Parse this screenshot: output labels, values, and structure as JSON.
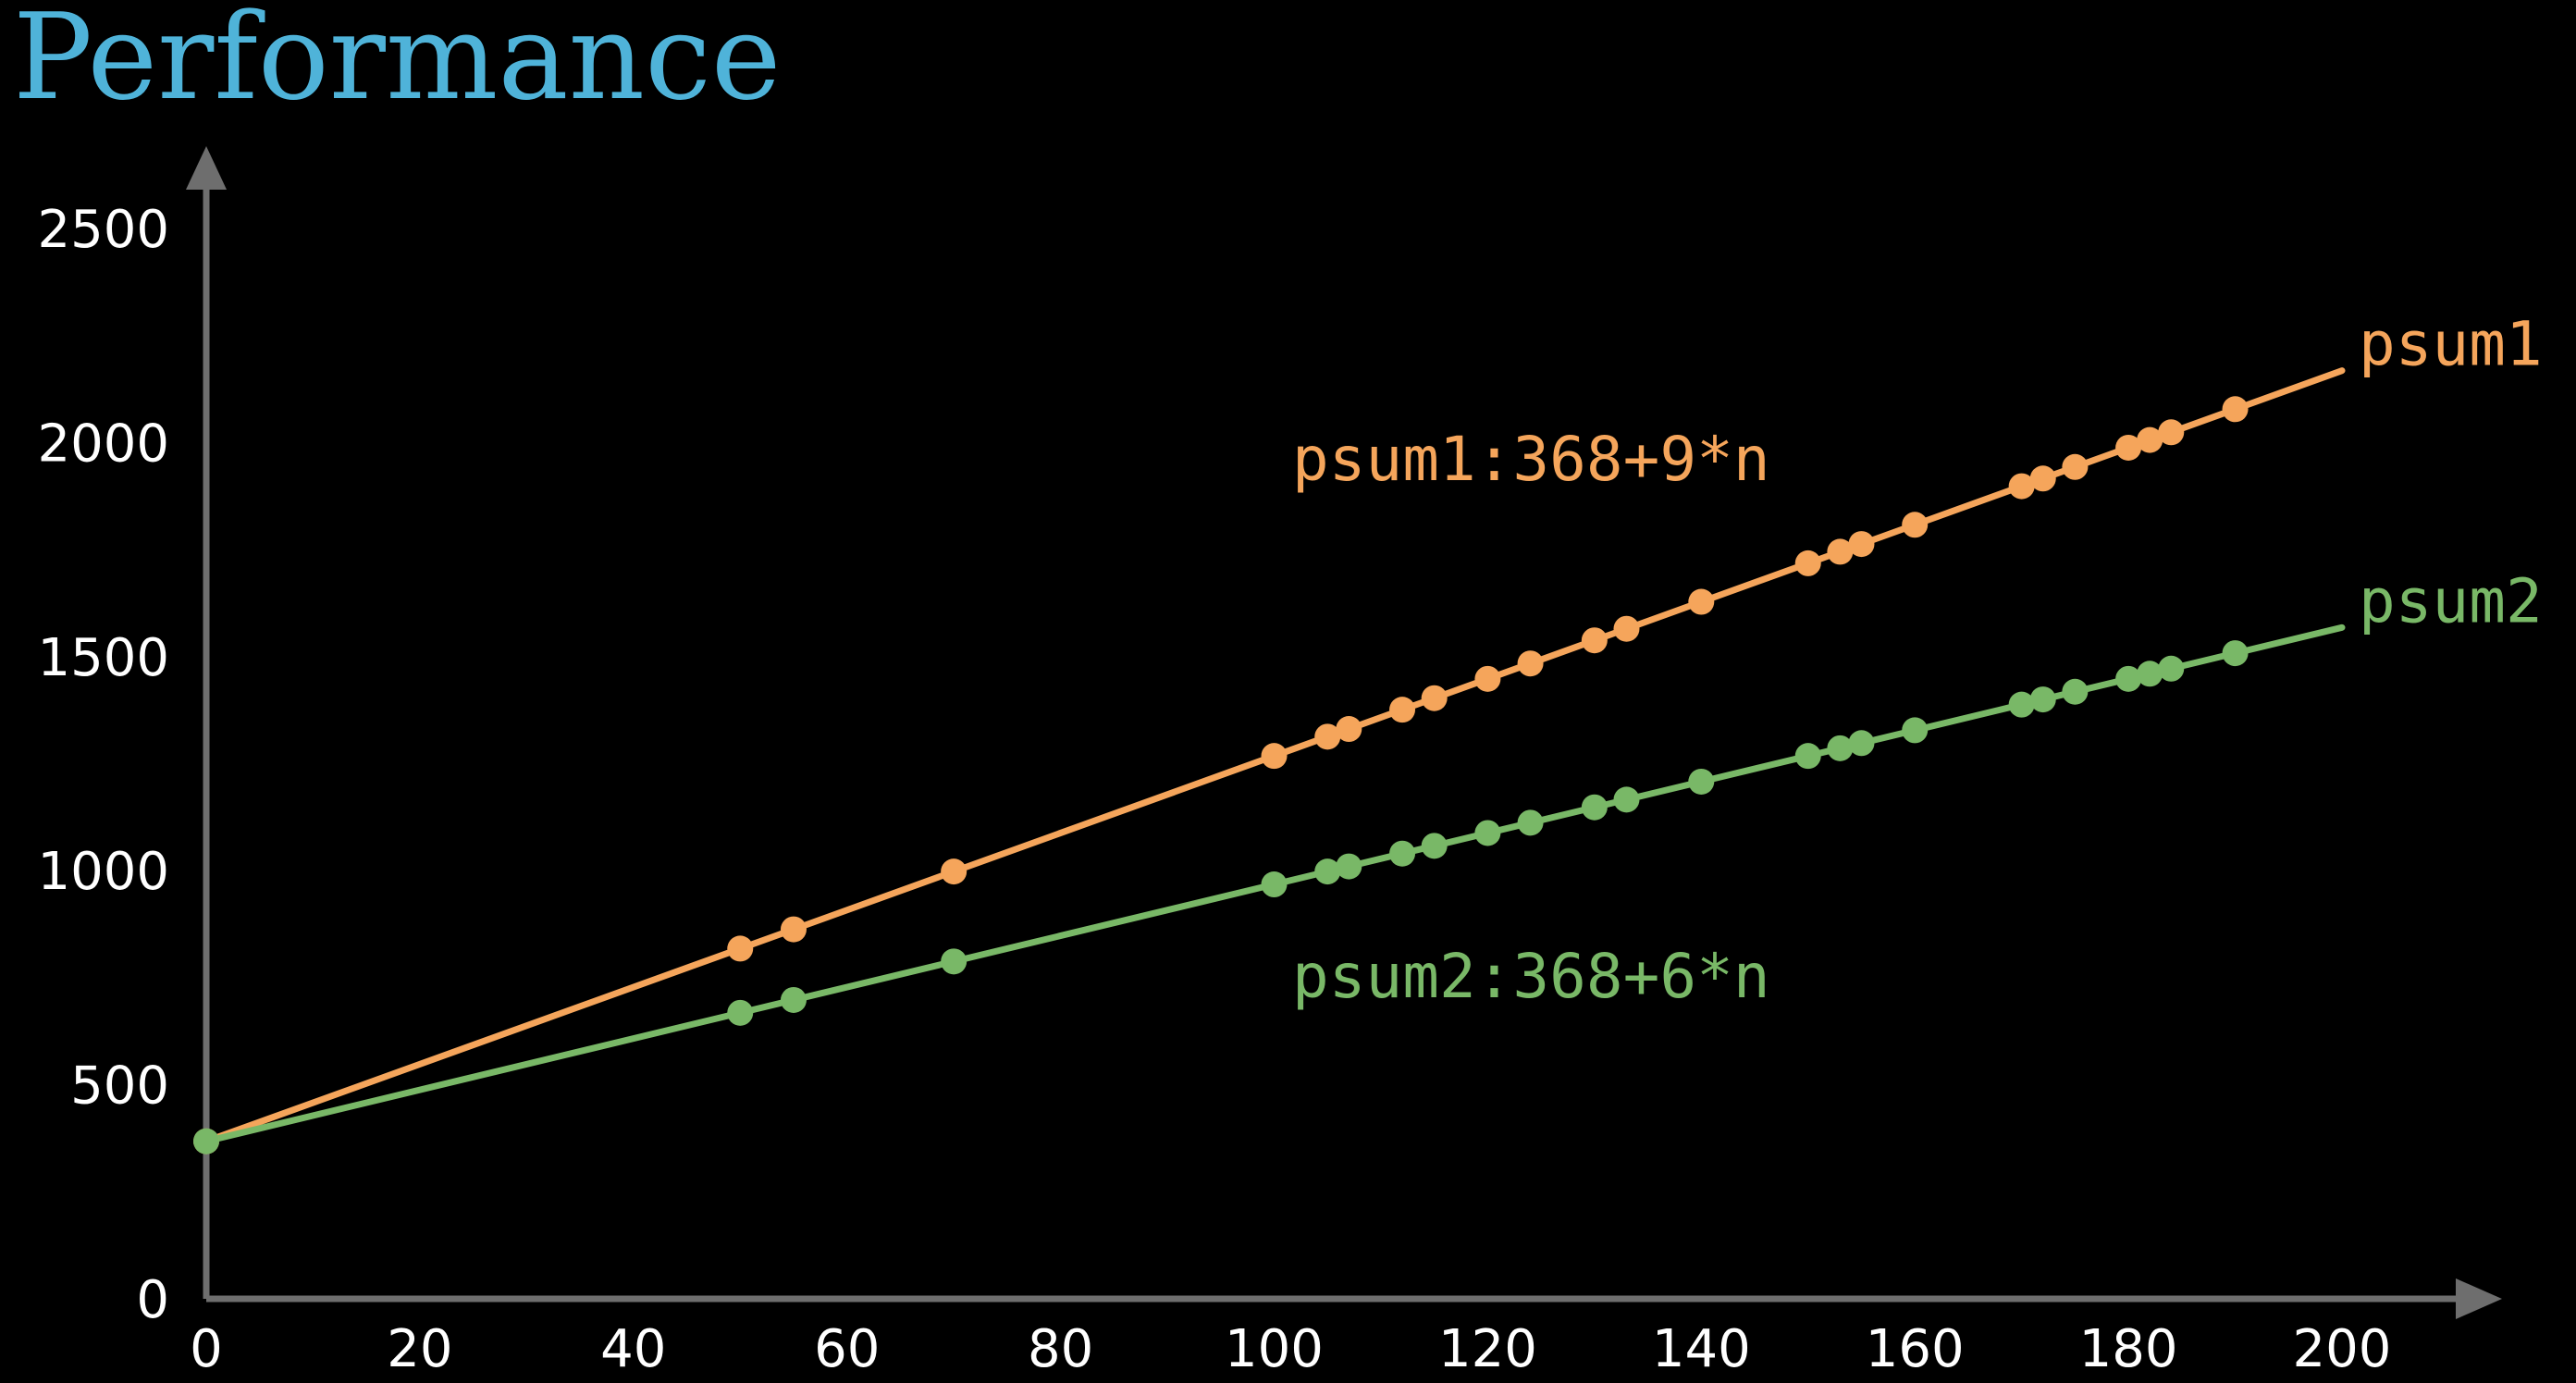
{
  "title": "Performance",
  "colors": {
    "background": "#000000",
    "title": "#4fb3d9",
    "axis": "#6e6e6e",
    "tick_text": "#ffffff",
    "psum1": "#f5a55b",
    "psum2": "#79b867"
  },
  "chart_data": {
    "type": "line",
    "title": "Performance",
    "xlabel": "",
    "ylabel": "",
    "xlim": [
      0,
      200
    ],
    "ylim": [
      0,
      2500
    ],
    "xticks": [
      0,
      20,
      40,
      60,
      80,
      100,
      120,
      140,
      160,
      180,
      200
    ],
    "yticks": [
      0,
      500,
      1000,
      1500,
      2000,
      2500
    ],
    "grid": false,
    "legend": "inline labels at line ends",
    "series": [
      {
        "name": "psum1",
        "color": "#f5a55b",
        "formula": "psum1:368+9*n",
        "intercept": 368,
        "slope": 9,
        "line_x": [
          0,
          200
        ],
        "points": {
          "x": [
            0,
            50,
            55,
            70,
            100,
            105,
            107,
            112,
            115,
            120,
            124,
            130,
            133,
            140,
            150,
            153,
            155,
            160,
            170,
            172,
            175,
            180,
            182,
            184,
            190
          ],
          "y": [
            368,
            818,
            863,
            998,
            1268,
            1313,
            1331,
            1376,
            1403,
            1448,
            1484,
            1538,
            1565,
            1628,
            1718,
            1745,
            1763,
            1808,
            1898,
            1916,
            1943,
            1988,
            2006,
            2024,
            2078
          ]
        }
      },
      {
        "name": "psum2",
        "color": "#79b867",
        "formula": "psum2:368+6*n",
        "intercept": 368,
        "slope": 6,
        "line_x": [
          0,
          200
        ],
        "points": {
          "x": [
            0,
            50,
            55,
            70,
            100,
            105,
            107,
            112,
            115,
            120,
            124,
            130,
            133,
            140,
            150,
            153,
            155,
            160,
            170,
            172,
            175,
            180,
            182,
            184,
            190
          ],
          "y": [
            368,
            668,
            698,
            788,
            968,
            998,
            1010,
            1040,
            1058,
            1088,
            1112,
            1148,
            1166,
            1208,
            1268,
            1286,
            1298,
            1328,
            1388,
            1400,
            1418,
            1448,
            1460,
            1472,
            1508
          ]
        }
      }
    ]
  }
}
